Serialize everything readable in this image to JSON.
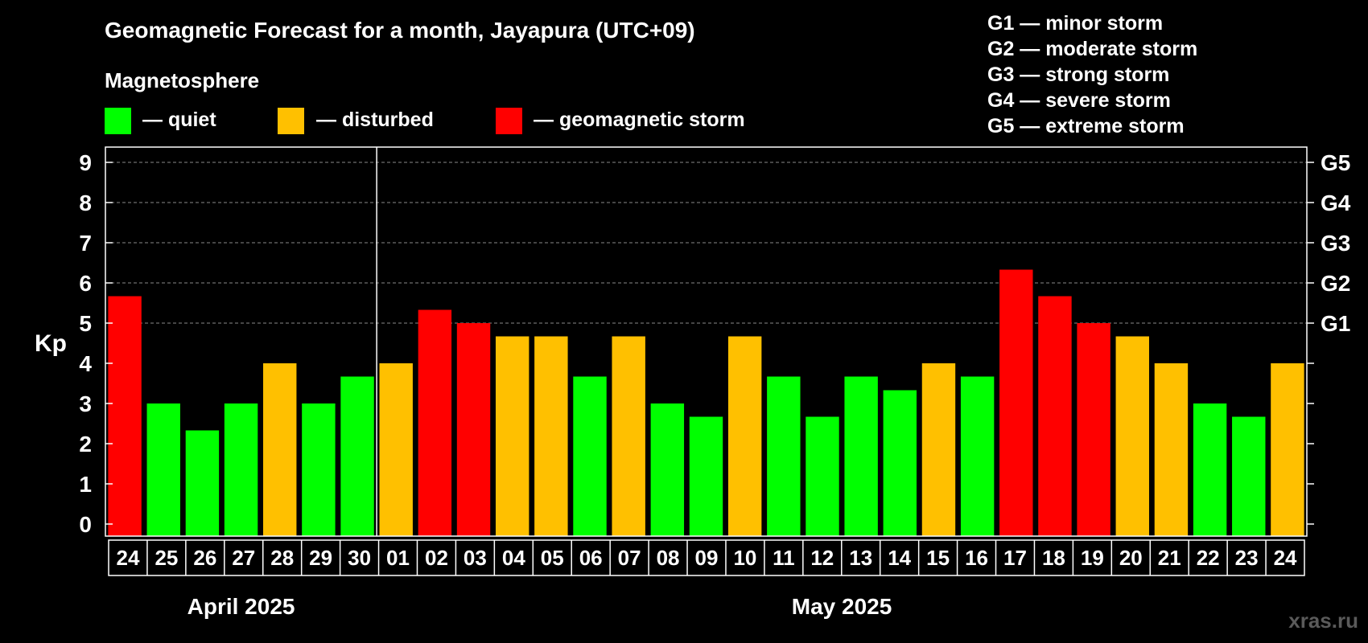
{
  "chart_data": {
    "type": "bar",
    "title": "Geomagnetic Forecast for a month, Jayapura (UTC+09)",
    "legend_heading": "Magnetosphere",
    "legend": [
      {
        "label": "— quiet",
        "color": "#00ff00"
      },
      {
        "label": "— disturbed",
        "color": "#ffc000"
      },
      {
        "label": "— geomagnetic storm",
        "color": "#ff0000"
      }
    ],
    "storm_scale": [
      "G1 — minor storm",
      "G2 — moderate storm",
      "G3 — strong storm",
      "G4 — severe storm",
      "G5 — extreme storm"
    ],
    "ylabel": "Kp",
    "ylim": [
      0,
      9
    ],
    "y_ticks": [
      0,
      1,
      2,
      3,
      4,
      5,
      6,
      7,
      8,
      9
    ],
    "right_ticks": [
      {
        "value": 5,
        "label": "G1"
      },
      {
        "value": 6,
        "label": "G2"
      },
      {
        "value": 7,
        "label": "G3"
      },
      {
        "value": 8,
        "label": "G4"
      },
      {
        "value": 9,
        "label": "G5"
      }
    ],
    "grid_lines": [
      5,
      6,
      7,
      8,
      9
    ],
    "categories": [
      "24",
      "25",
      "26",
      "27",
      "28",
      "29",
      "30",
      "01",
      "02",
      "03",
      "04",
      "05",
      "06",
      "07",
      "08",
      "09",
      "10",
      "11",
      "12",
      "13",
      "14",
      "15",
      "16",
      "17",
      "18",
      "19",
      "20",
      "21",
      "22",
      "23",
      "24"
    ],
    "values": [
      5.67,
      3.0,
      2.33,
      3.0,
      4.0,
      3.0,
      3.67,
      4.0,
      5.33,
      5.0,
      4.67,
      4.67,
      3.67,
      4.67,
      3.0,
      2.67,
      4.67,
      3.67,
      2.67,
      3.67,
      3.33,
      4.0,
      3.67,
      6.33,
      5.67,
      5.0,
      4.67,
      4.0,
      3.0,
      2.67,
      4.0
    ],
    "status": [
      "storm",
      "quiet",
      "quiet",
      "quiet",
      "disturbed",
      "quiet",
      "quiet",
      "disturbed",
      "storm",
      "storm",
      "disturbed",
      "disturbed",
      "quiet",
      "disturbed",
      "quiet",
      "quiet",
      "disturbed",
      "quiet",
      "quiet",
      "quiet",
      "quiet",
      "disturbed",
      "quiet",
      "storm",
      "storm",
      "storm",
      "disturbed",
      "disturbed",
      "quiet",
      "quiet",
      "disturbed"
    ],
    "colors": {
      "quiet": "#00ff00",
      "disturbed": "#ffc000",
      "storm": "#ff0000"
    },
    "months": [
      {
        "label": "April 2025",
        "count": 7
      },
      {
        "label": "May 2025",
        "count": 24
      }
    ],
    "watermark": "xras.ru"
  }
}
